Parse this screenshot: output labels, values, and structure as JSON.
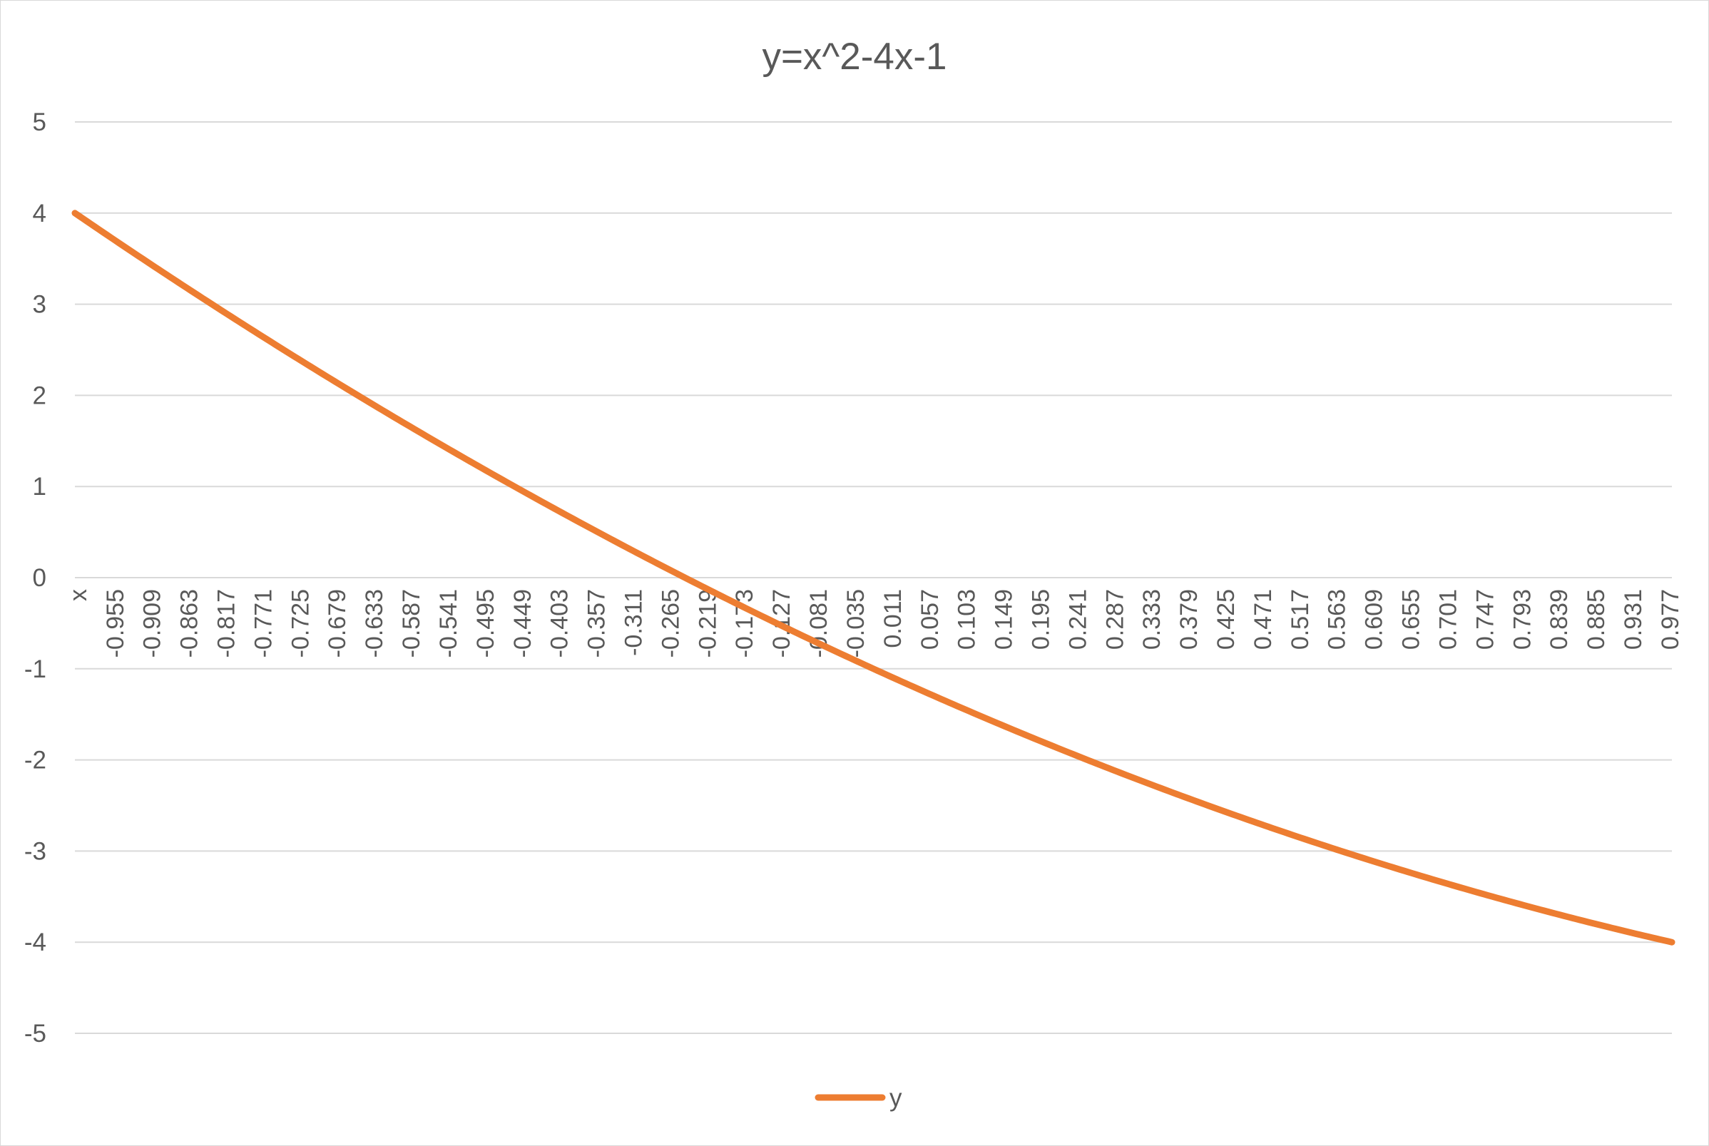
{
  "chart_data": {
    "type": "line",
    "title": "y=x^2-4x-1",
    "xlabel": "",
    "ylabel": "",
    "x_start": -1,
    "x_step": 0.001,
    "x_end": 1,
    "x_tick_first_label": "x",
    "x_tick_labels": [
      "x",
      "-0.955",
      "-0.909",
      "-0.863",
      "-0.817",
      "-0.771",
      "-0.725",
      "-0.679",
      "-0.633",
      "-0.587",
      "-0.541",
      "-0.495",
      "-0.449",
      "-0.403",
      "-0.357",
      "-0.311",
      "-0.265",
      "-0.219",
      "-0.173",
      "-0.127",
      "-0.081",
      "-0.035",
      "0.011",
      "0.057",
      "0.103",
      "0.149",
      "0.195",
      "0.241",
      "0.287",
      "0.333",
      "0.379",
      "0.425",
      "0.471",
      "0.517",
      "0.563",
      "0.609",
      "0.655",
      "0.701",
      "0.747",
      "0.793",
      "0.839",
      "0.885",
      "0.931",
      "0.977"
    ],
    "ylim": [
      -5,
      5
    ],
    "y_ticks": [
      5,
      4,
      3,
      2,
      1,
      0,
      -1,
      -2,
      -3,
      -4,
      -5
    ],
    "y_tick_labels": [
      "5",
      "4",
      "3",
      "2",
      "1",
      "0",
      "-1",
      "-2",
      "-3",
      "-4",
      "-5"
    ],
    "grid": true,
    "legend_position": "bottom",
    "series": [
      {
        "name": "y",
        "color": "#ed7d31",
        "formula": "x^2-4x-1",
        "x": [
          -1.0,
          -0.9,
          -0.8,
          -0.7,
          -0.6,
          -0.5,
          -0.4,
          -0.3,
          -0.2,
          -0.1,
          0.0,
          0.1,
          0.2,
          0.3,
          0.4,
          0.5,
          0.6,
          0.7,
          0.8,
          0.9,
          1.0
        ],
        "values": [
          4.0,
          3.41,
          2.84,
          2.29,
          1.76,
          1.25,
          0.76,
          0.29,
          -0.16,
          -0.59,
          -1.0,
          -1.39,
          -1.76,
          -2.11,
          -2.44,
          -2.75,
          -3.04,
          -3.31,
          -3.56,
          -3.79,
          -4.0
        ]
      }
    ]
  },
  "colors": {
    "gridline": "#d9d9d9",
    "text": "#595959",
    "series": "#ed7d31"
  }
}
